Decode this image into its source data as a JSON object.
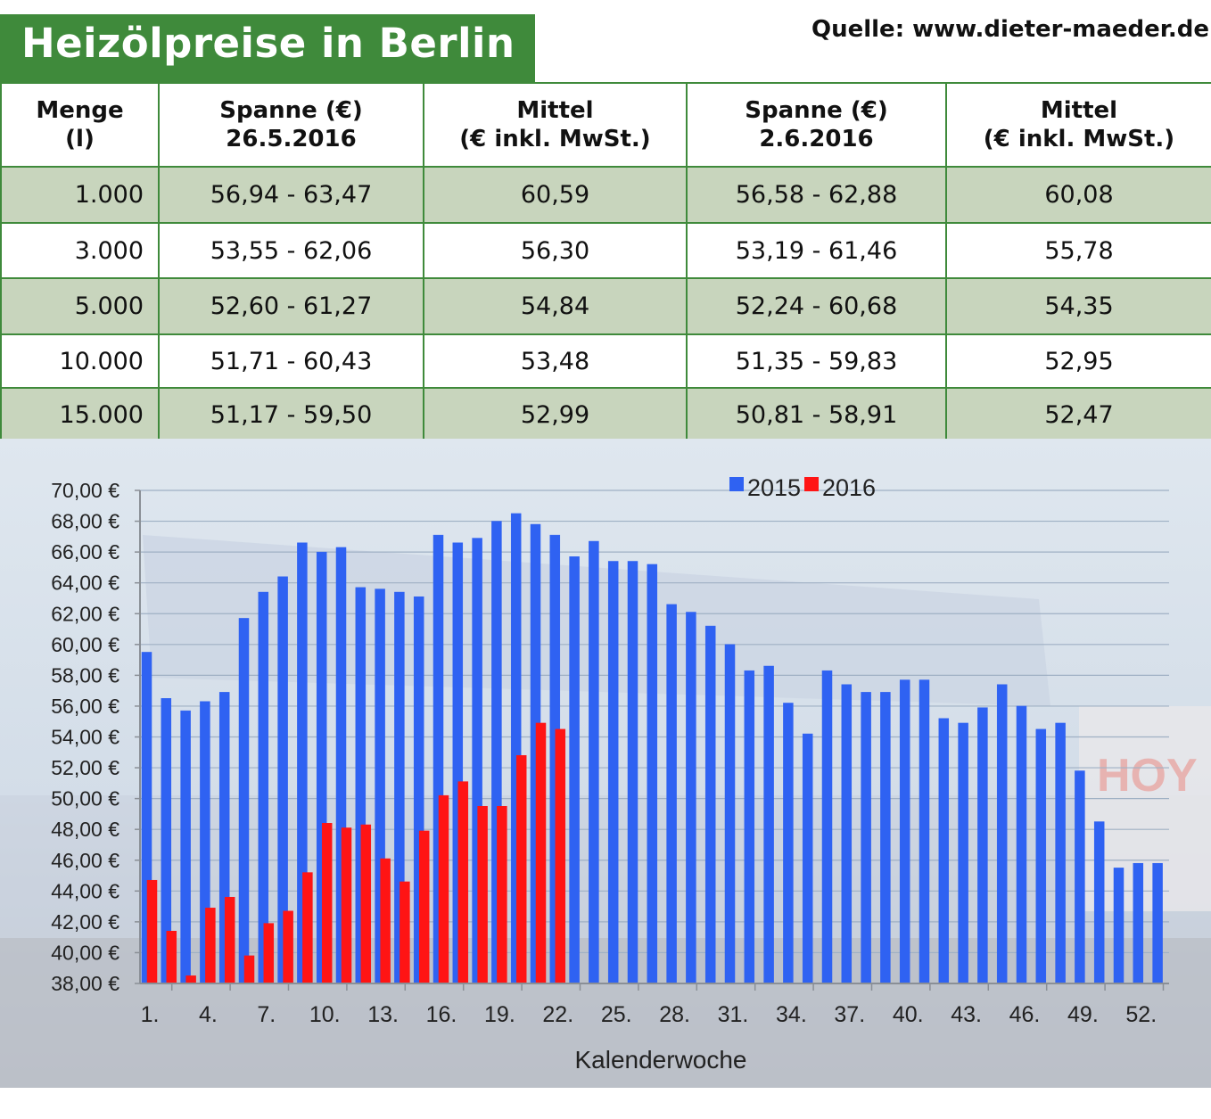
{
  "header": {
    "title": "Heizölpreise in Berlin",
    "source": "Quelle: www.dieter-maeder.de"
  },
  "table": {
    "headers": [
      [
        "Menge",
        "(l)"
      ],
      [
        "Spanne (€)",
        "26.5.2016"
      ],
      [
        "Mittel",
        "(€ inkl. MwSt.)"
      ],
      [
        "Spanne (€)",
        "2.6.2016"
      ],
      [
        "Mittel",
        "(€ inkl. MwSt.)"
      ]
    ],
    "rows": [
      [
        "1.000",
        "56,94 - 63,47",
        "60,59",
        "56,58 - 62,88",
        "60,08"
      ],
      [
        "3.000",
        "53,55 - 62,06",
        "56,30",
        "53,19 - 61,46",
        "55,78"
      ],
      [
        "5.000",
        "52,60 - 61,27",
        "54,84",
        "52,24 - 60,68",
        "54,35"
      ],
      [
        "10.000",
        "51,71 - 60,43",
        "53,48",
        "51,35 - 59,83",
        "52,95"
      ],
      [
        "15.000",
        "51,17 - 59,50",
        "52,99",
        "50,81 - 58,91",
        "52,47"
      ]
    ],
    "colors": {
      "border": "#3f8a3b",
      "shade": "#c8d5bd"
    }
  },
  "chart_data": {
    "type": "bar",
    "xlabel": "Kalenderwoche",
    "ylabel": "",
    "ylim": [
      38,
      70
    ],
    "yticks": [
      "70,00 €",
      "68,00 €",
      "66,00 €",
      "64,00 €",
      "62,00 €",
      "60,00 €",
      "58,00 €",
      "56,00 €",
      "54,00 €",
      "52,00 €",
      "50,00 €",
      "48,00 €",
      "46,00 €",
      "44,00 €",
      "42,00 €",
      "40,00 €",
      "38,00 €"
    ],
    "xtick_labels": [
      "1.",
      "4.",
      "7.",
      "10.",
      "13.",
      "16.",
      "19.",
      "22.",
      "25.",
      "28.",
      "31.",
      "34.",
      "37.",
      "40.",
      "43.",
      "46.",
      "49.",
      "52."
    ],
    "legend_position": "top-right",
    "grid": true,
    "series": [
      {
        "name": "2015",
        "color": "#2f62f2",
        "values": [
          59.5,
          56.5,
          55.7,
          56.3,
          56.9,
          61.7,
          63.4,
          64.4,
          66.6,
          66.0,
          66.3,
          63.7,
          63.6,
          63.4,
          63.1,
          67.1,
          66.6,
          66.9,
          68.0,
          68.5,
          67.8,
          67.1,
          65.7,
          66.7,
          65.4,
          65.4,
          65.2,
          62.6,
          62.1,
          61.2,
          60.0,
          58.3,
          58.6,
          56.2,
          54.2,
          58.3,
          57.4,
          56.9,
          56.9,
          57.7,
          57.7,
          55.2,
          54.9,
          55.9,
          57.4,
          56.0,
          54.5,
          54.9,
          51.8,
          48.5,
          45.5,
          45.8,
          45.8
        ]
      },
      {
        "name": "2016",
        "color": "#ff1414",
        "values": [
          44.7,
          41.4,
          38.5,
          42.9,
          43.6,
          39.8,
          41.9,
          42.7,
          45.2,
          48.4,
          48.1,
          48.3,
          46.1,
          44.6,
          47.9,
          50.2,
          51.1,
          49.5,
          49.5,
          52.8,
          54.9,
          54.5
        ]
      }
    ]
  }
}
